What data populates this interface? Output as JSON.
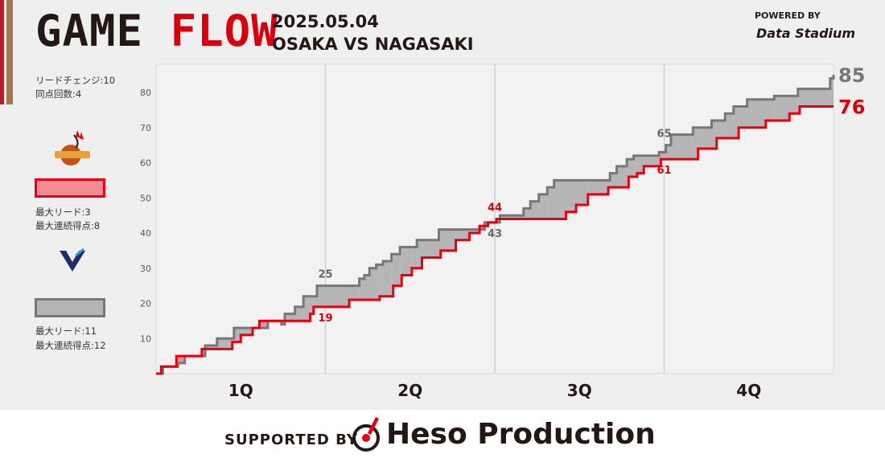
{
  "header": {
    "title_word1": "GAME",
    "title_word2": "FLOW",
    "date": "2025.05.04",
    "matchup": "OSAKA VS NAGASAKI",
    "powered_by": "POWERED BY",
    "data_logo": "Data Stadium"
  },
  "stats": {
    "lead_changes": "リードチェンジ:10",
    "ties": "同点回数:4"
  },
  "teams": [
    {
      "name": "OSAKA",
      "logo_text": "EVESSA",
      "color": "#e60012",
      "fill": "#f08b97",
      "max_lead": "最大リード:3",
      "max_run": "最大連続得点:8"
    },
    {
      "name": "NAGASAKI",
      "logo_text": "NAGASAKI VELCA",
      "color": "#777777",
      "fill": "#b5b5b5",
      "max_lead": "最大リード:11",
      "max_run": "最大連続得点:12"
    }
  ],
  "footer": {
    "supported_by": "SUPPORTED BY",
    "sponsor": "Heso Production"
  },
  "chart_data": {
    "type": "line",
    "x_unit": "game minutes",
    "xlim": [
      0,
      40
    ],
    "ylim": [
      0,
      88
    ],
    "y_ticks": [
      10,
      20,
      30,
      40,
      50,
      60,
      70,
      80
    ],
    "quarters": [
      "1Q",
      "2Q",
      "3Q",
      "4Q"
    ],
    "quarter_boundaries": [
      10,
      20,
      30
    ],
    "grid": true,
    "series": [
      {
        "name": "OSAKA",
        "color": "#e60012",
        "points": [
          [
            0,
            0
          ],
          [
            0.3,
            2
          ],
          [
            1.2,
            5
          ],
          [
            2.7,
            7
          ],
          [
            4.5,
            9
          ],
          [
            5.0,
            11
          ],
          [
            5.7,
            13
          ],
          [
            6.1,
            15
          ],
          [
            9.1,
            17
          ],
          [
            9.3,
            19
          ],
          [
            11.4,
            21
          ],
          [
            13.2,
            22
          ],
          [
            14.0,
            25
          ],
          [
            14.5,
            28
          ],
          [
            15.1,
            30
          ],
          [
            15.7,
            33
          ],
          [
            16.8,
            35
          ],
          [
            17.7,
            38
          ],
          [
            18.5,
            40
          ],
          [
            19.1,
            42
          ],
          [
            19.6,
            43
          ],
          [
            20.1,
            44
          ],
          [
            24.2,
            46
          ],
          [
            24.8,
            48
          ],
          [
            25.5,
            51
          ],
          [
            26.7,
            53
          ],
          [
            27.9,
            56
          ],
          [
            28.4,
            57
          ],
          [
            28.8,
            59
          ],
          [
            29.8,
            61
          ],
          [
            32.0,
            64
          ],
          [
            33.1,
            67
          ],
          [
            34.4,
            70
          ],
          [
            36.0,
            72
          ],
          [
            37.4,
            74
          ],
          [
            38.0,
            76
          ],
          [
            40,
            76
          ]
        ]
      },
      {
        "name": "NAGASAKI",
        "color": "#777777",
        "points": [
          [
            0,
            0
          ],
          [
            0.4,
            2
          ],
          [
            1.3,
            3
          ],
          [
            1.7,
            5
          ],
          [
            2.9,
            8
          ],
          [
            3.6,
            10
          ],
          [
            4.6,
            13
          ],
          [
            6.6,
            15
          ],
          [
            7.4,
            14
          ],
          [
            7.6,
            17
          ],
          [
            8.2,
            19
          ],
          [
            8.7,
            22
          ],
          [
            9.5,
            25
          ],
          [
            12.0,
            27
          ],
          [
            12.3,
            28
          ],
          [
            12.6,
            30
          ],
          [
            13.0,
            31
          ],
          [
            13.4,
            32
          ],
          [
            13.9,
            34
          ],
          [
            14.4,
            36
          ],
          [
            15.4,
            38
          ],
          [
            16.7,
            41
          ],
          [
            19.4,
            43
          ],
          [
            20.3,
            45
          ],
          [
            21.7,
            47
          ],
          [
            22.1,
            49
          ],
          [
            22.6,
            51
          ],
          [
            23.1,
            53
          ],
          [
            23.5,
            55
          ],
          [
            26.8,
            57
          ],
          [
            27.2,
            59
          ],
          [
            27.8,
            61
          ],
          [
            28.2,
            62
          ],
          [
            29.7,
            63
          ],
          [
            30.1,
            65
          ],
          [
            30.4,
            68
          ],
          [
            31.7,
            70
          ],
          [
            32.8,
            72
          ],
          [
            33.6,
            74
          ],
          [
            34.1,
            76
          ],
          [
            34.9,
            78
          ],
          [
            36.5,
            79
          ],
          [
            37.9,
            81
          ],
          [
            39.8,
            84
          ],
          [
            40,
            85
          ]
        ]
      }
    ],
    "annotations": [
      {
        "x": 10,
        "y": 19,
        "label": "19",
        "team": "OSAKA"
      },
      {
        "x": 10,
        "y": 25,
        "label": "25",
        "team": "NAGASAKI"
      },
      {
        "x": 20,
        "y": 44,
        "label": "44",
        "team": "OSAKA"
      },
      {
        "x": 20,
        "y": 43,
        "label": "43",
        "team": "NAGASAKI"
      },
      {
        "x": 30,
        "y": 61,
        "label": "61",
        "team": "OSAKA"
      },
      {
        "x": 30,
        "y": 65,
        "label": "65",
        "team": "NAGASAKI"
      }
    ],
    "final_scores": [
      {
        "team": "NAGASAKI",
        "label": "85",
        "y": 85
      },
      {
        "team": "OSAKA",
        "label": "76",
        "y": 76
      }
    ]
  }
}
